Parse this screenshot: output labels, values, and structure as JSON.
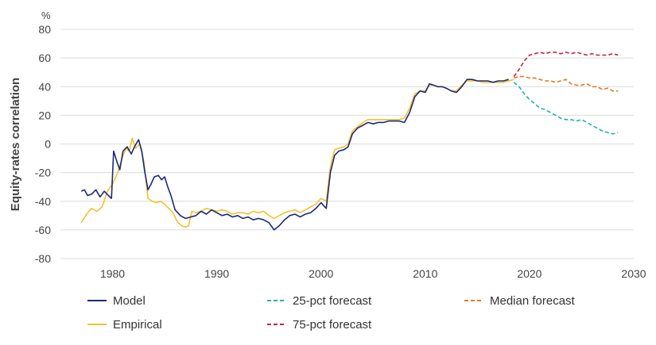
{
  "chart_data": {
    "type": "line",
    "title": "",
    "ylabel": "Equity-rates correlation",
    "y_unit": "%",
    "xlim": [
      1975,
      2030
    ],
    "ylim": [
      -80,
      80
    ],
    "x_ticks": [
      1980,
      1990,
      2000,
      2010,
      2020,
      2030
    ],
    "y_ticks": [
      80,
      60,
      40,
      20,
      0,
      -20,
      -40,
      -60,
      -80
    ],
    "grid": true,
    "legend_position": "bottom",
    "series": [
      {
        "name": "Model",
        "color": "#1b2a7a",
        "dash": false,
        "points": [
          [
            1977,
            -33
          ],
          [
            1977.3,
            -32
          ],
          [
            1977.6,
            -36
          ],
          [
            1978,
            -35
          ],
          [
            1978.4,
            -32
          ],
          [
            1978.8,
            -37
          ],
          [
            1979.2,
            -33
          ],
          [
            1979.6,
            -36
          ],
          [
            1979.9,
            -38
          ],
          [
            1980.1,
            -5
          ],
          [
            1980.4,
            -12
          ],
          [
            1980.7,
            -18
          ],
          [
            1981.0,
            -5
          ],
          [
            1981.4,
            -2
          ],
          [
            1981.8,
            -7
          ],
          [
            1982.1,
            -2
          ],
          [
            1982.5,
            3
          ],
          [
            1982.8,
            -5
          ],
          [
            1983.1,
            -20
          ],
          [
            1983.4,
            -32
          ],
          [
            1983.7,
            -28
          ],
          [
            1984.0,
            -23
          ],
          [
            1984.4,
            -22
          ],
          [
            1984.7,
            -25
          ],
          [
            1985.0,
            -23
          ],
          [
            1985.3,
            -30
          ],
          [
            1985.6,
            -36
          ],
          [
            1986.0,
            -46
          ],
          [
            1986.5,
            -50
          ],
          [
            1987.0,
            -52
          ],
          [
            1987.5,
            -51
          ],
          [
            1988.0,
            -50
          ],
          [
            1988.5,
            -47
          ],
          [
            1989.0,
            -49
          ],
          [
            1989.5,
            -46
          ],
          [
            1990.0,
            -48
          ],
          [
            1990.5,
            -50
          ],
          [
            1991.0,
            -49
          ],
          [
            1991.5,
            -51
          ],
          [
            1992.0,
            -50
          ],
          [
            1992.5,
            -52
          ],
          [
            1993.0,
            -51
          ],
          [
            1993.5,
            -53
          ],
          [
            1994.0,
            -52
          ],
          [
            1994.5,
            -53
          ],
          [
            1995.0,
            -55
          ],
          [
            1995.5,
            -60
          ],
          [
            1996.0,
            -57
          ],
          [
            1996.5,
            -53
          ],
          [
            1997.0,
            -50
          ],
          [
            1997.5,
            -49
          ],
          [
            1998.0,
            -51
          ],
          [
            1998.5,
            -49
          ],
          [
            1999.0,
            -48
          ],
          [
            1999.5,
            -45
          ],
          [
            2000.0,
            -41
          ],
          [
            2000.5,
            -45
          ],
          [
            2000.9,
            -20
          ],
          [
            2001.3,
            -8
          ],
          [
            2001.7,
            -5
          ],
          [
            2002.2,
            -4
          ],
          [
            2002.6,
            -2
          ],
          [
            2003.0,
            7
          ],
          [
            2003.5,
            11
          ],
          [
            2004.0,
            13
          ],
          [
            2004.5,
            15
          ],
          [
            2005.0,
            14
          ],
          [
            2005.5,
            15
          ],
          [
            2006.0,
            15
          ],
          [
            2006.5,
            16
          ],
          [
            2007.0,
            16
          ],
          [
            2007.5,
            16
          ],
          [
            2008.0,
            15
          ],
          [
            2008.5,
            22
          ],
          [
            2009.0,
            33
          ],
          [
            2009.5,
            37
          ],
          [
            2010.0,
            36
          ],
          [
            2010.4,
            42
          ],
          [
            2010.8,
            41
          ],
          [
            2011.2,
            40
          ],
          [
            2011.6,
            40
          ],
          [
            2012.0,
            39
          ],
          [
            2012.5,
            37
          ],
          [
            2013.0,
            36
          ],
          [
            2013.5,
            40
          ],
          [
            2014.0,
            45
          ],
          [
            2014.5,
            45
          ],
          [
            2015.0,
            44
          ],
          [
            2015.5,
            44
          ],
          [
            2016.0,
            44
          ],
          [
            2016.5,
            43
          ],
          [
            2017.0,
            44
          ],
          [
            2017.5,
            44
          ],
          [
            2018.0,
            45
          ]
        ]
      },
      {
        "name": "Empirical",
        "color": "#f2c12e",
        "dash": false,
        "points": [
          [
            1977,
            -55
          ],
          [
            1977.5,
            -49
          ],
          [
            1978,
            -45
          ],
          [
            1978.5,
            -47
          ],
          [
            1979,
            -44
          ],
          [
            1979.5,
            -33
          ],
          [
            1980,
            -28
          ],
          [
            1980.5,
            -20
          ],
          [
            1981,
            -8
          ],
          [
            1981.3,
            -3
          ],
          [
            1981.6,
            -5
          ],
          [
            1981.9,
            4
          ],
          [
            1982.2,
            -3
          ],
          [
            1982.6,
            0
          ],
          [
            1983.0,
            -12
          ],
          [
            1983.4,
            -38
          ],
          [
            1983.8,
            -40
          ],
          [
            1984.2,
            -41
          ],
          [
            1984.6,
            -40
          ],
          [
            1985.0,
            -42
          ],
          [
            1985.4,
            -45
          ],
          [
            1985.8,
            -48
          ],
          [
            1986.2,
            -54
          ],
          [
            1986.6,
            -57
          ],
          [
            1987.0,
            -58
          ],
          [
            1987.3,
            -57
          ],
          [
            1987.6,
            -47
          ],
          [
            1988.0,
            -48
          ],
          [
            1988.5,
            -47
          ],
          [
            1989.0,
            -45
          ],
          [
            1989.5,
            -46
          ],
          [
            1990.0,
            -47
          ],
          [
            1990.5,
            -46
          ],
          [
            1991.0,
            -47
          ],
          [
            1991.5,
            -49
          ],
          [
            1992.0,
            -48
          ],
          [
            1992.5,
            -48
          ],
          [
            1993.0,
            -49
          ],
          [
            1993.5,
            -47
          ],
          [
            1994.0,
            -48
          ],
          [
            1994.5,
            -47
          ],
          [
            1995.0,
            -50
          ],
          [
            1995.5,
            -52
          ],
          [
            1996.0,
            -50
          ],
          [
            1996.5,
            -48
          ],
          [
            1997.0,
            -47
          ],
          [
            1997.5,
            -46
          ],
          [
            1998.0,
            -48
          ],
          [
            1998.5,
            -46
          ],
          [
            1999.0,
            -44
          ],
          [
            1999.5,
            -42
          ],
          [
            2000.0,
            -38
          ],
          [
            2000.5,
            -40
          ],
          [
            2000.9,
            -16
          ],
          [
            2001.3,
            -4
          ],
          [
            2001.7,
            -3
          ],
          [
            2002.2,
            -2
          ],
          [
            2002.6,
            0
          ],
          [
            2003.0,
            9
          ],
          [
            2003.5,
            12
          ],
          [
            2004.0,
            15
          ],
          [
            2004.5,
            17
          ],
          [
            2005.0,
            17
          ],
          [
            2005.5,
            17
          ],
          [
            2006.0,
            17
          ],
          [
            2006.5,
            17
          ],
          [
            2007.0,
            17
          ],
          [
            2007.5,
            17
          ],
          [
            2008.0,
            18
          ],
          [
            2008.5,
            25
          ],
          [
            2009.0,
            35
          ],
          [
            2009.5,
            37
          ],
          [
            2010.0,
            37
          ],
          [
            2010.4,
            41
          ],
          [
            2010.8,
            41
          ],
          [
            2011.2,
            40
          ],
          [
            2011.6,
            40
          ],
          [
            2012.0,
            39
          ],
          [
            2012.5,
            37
          ],
          [
            2013.0,
            37
          ],
          [
            2013.5,
            41
          ],
          [
            2014.0,
            44
          ],
          [
            2014.5,
            44
          ],
          [
            2015.0,
            44
          ],
          [
            2015.5,
            43
          ],
          [
            2016.0,
            43
          ],
          [
            2016.5,
            43
          ],
          [
            2017.0,
            43
          ],
          [
            2017.5,
            43
          ],
          [
            2018.0,
            44
          ],
          [
            2018.5,
            45
          ]
        ]
      },
      {
        "name": "25-pct forecast",
        "color": "#1fb5a8",
        "dash": true,
        "points": [
          [
            2018.5,
            43
          ],
          [
            2019.0,
            40
          ],
          [
            2019.5,
            35
          ],
          [
            2020.0,
            31
          ],
          [
            2020.5,
            28
          ],
          [
            2021.0,
            25
          ],
          [
            2021.5,
            24
          ],
          [
            2022.0,
            22
          ],
          [
            2022.5,
            20
          ],
          [
            2023.0,
            18
          ],
          [
            2023.5,
            17
          ],
          [
            2024.0,
            17
          ],
          [
            2024.5,
            16
          ],
          [
            2025.0,
            17
          ],
          [
            2025.5,
            15
          ],
          [
            2026.0,
            13
          ],
          [
            2026.5,
            11
          ],
          [
            2027.0,
            9
          ],
          [
            2027.5,
            8
          ],
          [
            2028.0,
            7
          ],
          [
            2028.5,
            8
          ]
        ]
      },
      {
        "name": "75-pct forecast",
        "color": "#c0263d",
        "dash": true,
        "points": [
          [
            2018.5,
            47
          ],
          [
            2019.0,
            52
          ],
          [
            2019.5,
            58
          ],
          [
            2020.0,
            62
          ],
          [
            2020.5,
            63
          ],
          [
            2021.0,
            64
          ],
          [
            2021.5,
            63
          ],
          [
            2022.0,
            64
          ],
          [
            2022.5,
            64
          ],
          [
            2023.0,
            63
          ],
          [
            2023.5,
            64
          ],
          [
            2024.0,
            63
          ],
          [
            2024.5,
            64
          ],
          [
            2025.0,
            63
          ],
          [
            2025.5,
            62
          ],
          [
            2026.0,
            63
          ],
          [
            2026.5,
            62
          ],
          [
            2027.0,
            62
          ],
          [
            2027.5,
            62
          ],
          [
            2028.0,
            63
          ],
          [
            2028.5,
            62
          ]
        ]
      },
      {
        "name": "Median forecast",
        "color": "#e07b1a",
        "dash": true,
        "points": [
          [
            2018.5,
            46
          ],
          [
            2019.0,
            47
          ],
          [
            2019.5,
            47
          ],
          [
            2020.0,
            46
          ],
          [
            2020.5,
            46
          ],
          [
            2021.0,
            45
          ],
          [
            2021.5,
            44
          ],
          [
            2022.0,
            44
          ],
          [
            2022.5,
            43
          ],
          [
            2023.0,
            44
          ],
          [
            2023.5,
            45
          ],
          [
            2024.0,
            42
          ],
          [
            2024.5,
            41
          ],
          [
            2025.0,
            41
          ],
          [
            2025.5,
            42
          ],
          [
            2026.0,
            40
          ],
          [
            2026.5,
            40
          ],
          [
            2027.0,
            38
          ],
          [
            2027.5,
            39
          ],
          [
            2028.0,
            37
          ],
          [
            2028.5,
            37
          ]
        ]
      }
    ]
  },
  "legend": [
    {
      "name": "Model",
      "color": "#1b2a7a",
      "dash": false
    },
    {
      "name": "25-pct forecast",
      "color": "#1fb5a8",
      "dash": true
    },
    {
      "name": "Median forecast",
      "color": "#e07b1a",
      "dash": true
    },
    {
      "name": "Empirical",
      "color": "#f2c12e",
      "dash": false
    },
    {
      "name": "75-pct forecast",
      "color": "#c0263d",
      "dash": true
    }
  ]
}
